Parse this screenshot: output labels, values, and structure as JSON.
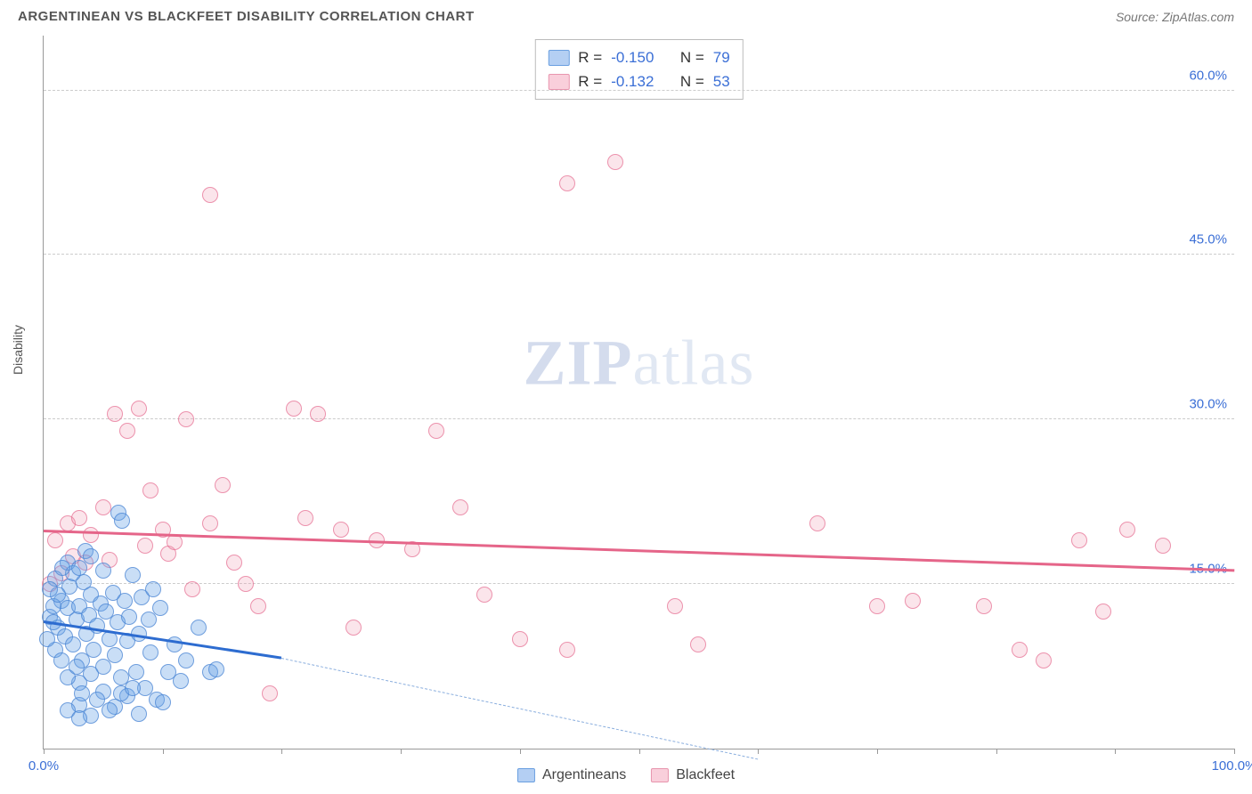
{
  "header": {
    "title": "ARGENTINEAN VS BLACKFEET DISABILITY CORRELATION CHART",
    "source_label": "Source: ",
    "source_value": "ZipAtlas.com"
  },
  "watermark": {
    "zip": "ZIP",
    "rest": "atlas"
  },
  "chart": {
    "type": "scatter",
    "ylabel": "Disability",
    "xlim": [
      0,
      100
    ],
    "ylim": [
      0,
      65
    ],
    "xtick_positions": [
      0,
      10,
      20,
      30,
      40,
      50,
      60,
      70,
      80,
      90,
      100
    ],
    "xtick_labels": {
      "0": "0.0%",
      "100": "100.0%"
    },
    "ytick_values": [
      15,
      30,
      45,
      60
    ],
    "ytick_labels": [
      "15.0%",
      "30.0%",
      "45.0%",
      "60.0%"
    ],
    "grid_color": "#cccccc",
    "axis_color": "#999999",
    "tick_label_color": "#3b6fd6",
    "background_color": "#ffffff",
    "point_radius": 9,
    "series_a": {
      "name": "Argentineans",
      "fill": "rgba(100,160,230,0.35)",
      "stroke": "rgba(70,130,210,0.7)",
      "R": "-0.150",
      "N": "79",
      "trend": {
        "x1": 0,
        "y1": 11.5,
        "x2": 20,
        "y2": 8.2,
        "color": "#2d6cd0",
        "dash_to_x": 60,
        "dash_to_y": -1
      },
      "points": [
        [
          0.5,
          12
        ],
        [
          1,
          15.5
        ],
        [
          1.2,
          11
        ],
        [
          1.5,
          13.5
        ],
        [
          1.8,
          10.2
        ],
        [
          2,
          12.8
        ],
        [
          2.2,
          14.8
        ],
        [
          2.5,
          9.5
        ],
        [
          2.8,
          11.8
        ],
        [
          3,
          13
        ],
        [
          3.2,
          8
        ],
        [
          3.4,
          15.2
        ],
        [
          3.6,
          10.5
        ],
        [
          3.8,
          12.2
        ],
        [
          4,
          14
        ],
        [
          4.2,
          9
        ],
        [
          4.5,
          11.2
        ],
        [
          4.8,
          13.2
        ],
        [
          5,
          7.5
        ],
        [
          5.2,
          12.5
        ],
        [
          5.5,
          10
        ],
        [
          5.8,
          14.2
        ],
        [
          6,
          8.5
        ],
        [
          6.2,
          11.5
        ],
        [
          6.5,
          6.5
        ],
        [
          6.8,
          13.5
        ],
        [
          7,
          9.8
        ],
        [
          7.2,
          12
        ],
        [
          7.5,
          15.8
        ],
        [
          7.8,
          7
        ],
        [
          8,
          10.5
        ],
        [
          8.2,
          13.8
        ],
        [
          8.5,
          5.5
        ],
        [
          8.8,
          11.8
        ],
        [
          9,
          8.8
        ],
        [
          9.2,
          14.5
        ],
        [
          6.3,
          21.5
        ],
        [
          6.6,
          20.8
        ],
        [
          9.5,
          4.5
        ],
        [
          9.8,
          12.8
        ],
        [
          3,
          4
        ],
        [
          4,
          3
        ],
        [
          5,
          5.2
        ],
        [
          6,
          3.8
        ],
        [
          7,
          4.8
        ],
        [
          8,
          3.2
        ],
        [
          10,
          4.2
        ],
        [
          2,
          17
        ],
        [
          3,
          6
        ],
        [
          4,
          6.8
        ],
        [
          1,
          9
        ],
        [
          1.5,
          8
        ],
        [
          2,
          6.5
        ],
        [
          2.5,
          16
        ],
        [
          3,
          16.5
        ],
        [
          3.5,
          18
        ],
        [
          10.5,
          7
        ],
        [
          11,
          9.5
        ],
        [
          11.5,
          6.2
        ],
        [
          12,
          8
        ],
        [
          2,
          3.5
        ],
        [
          3,
          2.8
        ],
        [
          4,
          17.5
        ],
        [
          5,
          16.2
        ],
        [
          0.8,
          13
        ],
        [
          1.2,
          14
        ],
        [
          1.6,
          16.5
        ],
        [
          14,
          7
        ],
        [
          14.5,
          7.2
        ],
        [
          0.5,
          14.5
        ],
        [
          2.8,
          7.5
        ],
        [
          3.2,
          5
        ],
        [
          4.5,
          4.5
        ],
        [
          5.5,
          3.5
        ],
        [
          6.5,
          5
        ],
        [
          7.5,
          5.5
        ],
        [
          13,
          11
        ],
        [
          0.3,
          10
        ],
        [
          0.8,
          11.5
        ]
      ]
    },
    "series_b": {
      "name": "Blackfeet",
      "fill": "rgba(240,150,175,0.25)",
      "stroke": "rgba(230,110,145,0.7)",
      "R": "-0.132",
      "N": "53",
      "trend": {
        "x1": 0,
        "y1": 19.8,
        "x2": 100,
        "y2": 16.2,
        "color": "#e56589"
      },
      "points": [
        [
          1,
          19
        ],
        [
          2,
          20.5
        ],
        [
          2.5,
          17.5
        ],
        [
          3,
          21
        ],
        [
          3.5,
          17
        ],
        [
          4,
          19.5
        ],
        [
          5,
          22
        ],
        [
          5.5,
          17.2
        ],
        [
          6,
          30.5
        ],
        [
          7,
          29
        ],
        [
          8,
          31
        ],
        [
          8.5,
          18.5
        ],
        [
          9,
          23.5
        ],
        [
          10,
          20
        ],
        [
          10.5,
          17.8
        ],
        [
          11,
          18.8
        ],
        [
          12,
          30
        ],
        [
          12.5,
          14.5
        ],
        [
          14,
          20.5
        ],
        [
          15,
          24
        ],
        [
          16,
          17
        ],
        [
          17,
          15
        ],
        [
          18,
          13
        ],
        [
          19,
          5
        ],
        [
          21,
          31
        ],
        [
          22,
          21
        ],
        [
          23,
          30.5
        ],
        [
          25,
          20
        ],
        [
          26,
          11
        ],
        [
          28,
          19
        ],
        [
          31,
          18.2
        ],
        [
          33,
          29
        ],
        [
          35,
          22
        ],
        [
          37,
          14
        ],
        [
          40,
          10
        ],
        [
          44,
          9
        ],
        [
          48,
          53.5
        ],
        [
          53,
          13
        ],
        [
          55,
          9.5
        ],
        [
          65,
          20.5
        ],
        [
          70,
          13
        ],
        [
          73,
          13.5
        ],
        [
          79,
          13
        ],
        [
          82,
          9
        ],
        [
          84,
          8
        ],
        [
          87,
          19
        ],
        [
          89,
          12.5
        ],
        [
          91,
          20
        ],
        [
          94,
          18.5
        ],
        [
          1.5,
          16
        ],
        [
          14,
          50.5
        ],
        [
          44,
          51.5
        ],
        [
          0.5,
          15
        ]
      ]
    }
  },
  "legend_top": {
    "r_label": "R =",
    "n_label": "N ="
  },
  "legend_bottom": {
    "a_label": "Argentineans",
    "b_label": "Blackfeet"
  }
}
